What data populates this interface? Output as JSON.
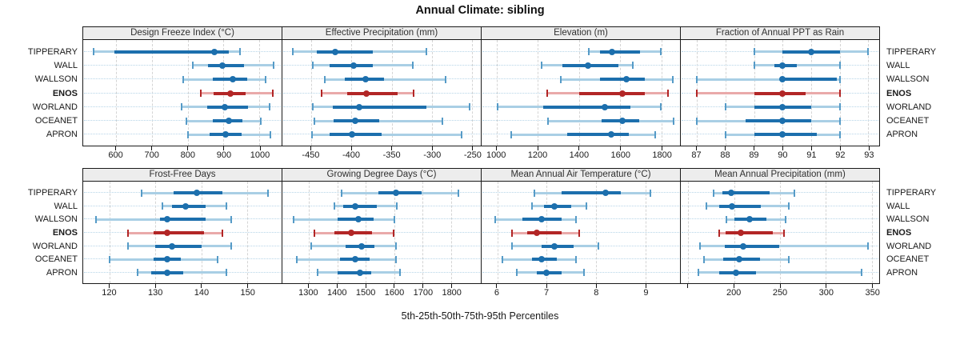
{
  "title": "Annual Climate: sibling",
  "footer": "5th-25th-50th-75th-95th Percentiles",
  "sites": [
    "TIPPERARY",
    "WALL",
    "WALLSON",
    "ENOS",
    "WORLAND",
    "OCEANET",
    "APRON"
  ],
  "highlighted_site": "ENOS",
  "percentile_labels": [
    "5th",
    "25th",
    "50th",
    "75th",
    "95th"
  ],
  "colors": {
    "blue_dark": "#1c6fad",
    "blue_light": "#a9cfe5",
    "blue_cap": "#569bc7",
    "red_dark": "#b22626",
    "red_light": "#e9a9a9",
    "grid_dash": "#d4d4d4",
    "row_dotted": "#b7d5e8",
    "header_bg": "#ededed",
    "border": "#1a1a1a"
  },
  "chart_data": [
    {
      "type": "percentile-range",
      "title": "Design Freeze Index (°C)",
      "grid_row": "top",
      "axis": {
        "domain": [
          508,
          1062
        ],
        "ticks": [
          600,
          700,
          800,
          900,
          1000
        ],
        "tick_labels": [
          "600",
          "700",
          "800",
          "900",
          "1000"
        ]
      },
      "series": [
        {
          "site": "TIPPERARY",
          "percentiles": [
            537,
            595,
            875,
            915,
            945
          ]
        },
        {
          "site": "WALL",
          "percentiles": [
            815,
            856,
            897,
            958,
            1040
          ]
        },
        {
          "site": "WALLSON",
          "percentiles": [
            787,
            871,
            926,
            967,
            1017
          ]
        },
        {
          "site": "ENOS",
          "percentiles": [
            837,
            872,
            920,
            962,
            1038
          ]
        },
        {
          "site": "WORLAND",
          "percentiles": [
            782,
            855,
            903,
            969,
            1029
          ]
        },
        {
          "site": "OCEANET",
          "percentiles": [
            796,
            871,
            914,
            953,
            1004
          ]
        },
        {
          "site": "APRON",
          "percentiles": [
            801,
            862,
            905,
            951,
            1031
          ]
        }
      ]
    },
    {
      "type": "percentile-range",
      "title": "Effective Precipitation (mm)",
      "grid_row": "top",
      "axis": {
        "domain": [
          -486,
          -239
        ],
        "ticks": [
          -450,
          -400,
          -350,
          -300,
          -250
        ],
        "tick_labels": [
          "-450",
          "-400",
          "-350",
          "-300",
          "-250"
        ]
      },
      "series": [
        {
          "site": "TIPPERARY",
          "percentiles": [
            -473,
            -443,
            -420,
            -373,
            -307
          ]
        },
        {
          "site": "WALL",
          "percentiles": [
            -448,
            -427,
            -397,
            -373,
            -324
          ]
        },
        {
          "site": "WALLSON",
          "percentiles": [
            -433,
            -408,
            -382,
            -360,
            -283
          ]
        },
        {
          "site": "ENOS",
          "percentiles": [
            -437,
            -405,
            -381,
            -343,
            -323
          ]
        },
        {
          "site": "WORLAND",
          "percentiles": [
            -448,
            -423,
            -390,
            -307,
            -253
          ]
        },
        {
          "site": "OCEANET",
          "percentiles": [
            -446,
            -422,
            -395,
            -365,
            -287
          ]
        },
        {
          "site": "APRON",
          "percentiles": [
            -449,
            -427,
            -399,
            -362,
            -263
          ]
        }
      ]
    },
    {
      "type": "percentile-range",
      "title": "Elevation (m)",
      "grid_row": "top",
      "axis": {
        "domain": [
          926,
          1890
        ],
        "ticks": [
          1000,
          1200,
          1400,
          1600,
          1800
        ],
        "tick_labels": [
          "1000",
          "1200",
          "1400",
          "1600",
          "1800"
        ]
      },
      "series": [
        {
          "site": "TIPPERARY",
          "percentiles": [
            1445,
            1500,
            1560,
            1695,
            1795
          ]
        },
        {
          "site": "WALL",
          "percentiles": [
            1216,
            1320,
            1444,
            1590,
            1660
          ]
        },
        {
          "site": "WALLSON",
          "percentiles": [
            1310,
            1500,
            1630,
            1720,
            1855
          ]
        },
        {
          "site": "ENOS",
          "percentiles": [
            1245,
            1400,
            1610,
            1720,
            1830
          ]
        },
        {
          "site": "WORLAND",
          "percentiles": [
            1005,
            1225,
            1525,
            1650,
            1795
          ]
        },
        {
          "site": "OCEANET",
          "percentiles": [
            1250,
            1510,
            1610,
            1690,
            1860
          ]
        },
        {
          "site": "APRON",
          "percentiles": [
            1070,
            1340,
            1555,
            1640,
            1770
          ]
        }
      ]
    },
    {
      "type": "percentile-range",
      "title": "Fraction of Annual PPT as Rain",
      "grid_row": "top",
      "axis": {
        "domain": [
          86.43,
          93.38
        ],
        "ticks": [
          87,
          88,
          89,
          90,
          91,
          92,
          93
        ],
        "tick_labels": [
          "87",
          "88",
          "89",
          "90",
          "91",
          "92",
          "93"
        ]
      },
      "series": [
        {
          "site": "TIPPERARY",
          "percentiles": [
            89,
            90,
            91,
            92,
            93
          ]
        },
        {
          "site": "WALL",
          "percentiles": [
            89,
            89.7,
            90,
            90.5,
            92
          ]
        },
        {
          "site": "WALLSON",
          "percentiles": [
            87,
            89.9,
            90,
            91.9,
            92
          ]
        },
        {
          "site": "ENOS",
          "percentiles": [
            87,
            89,
            90,
            90.8,
            92
          ]
        },
        {
          "site": "WORLAND",
          "percentiles": [
            88,
            89,
            90,
            91,
            92
          ]
        },
        {
          "site": "OCEANET",
          "percentiles": [
            87,
            88.7,
            90,
            91,
            92
          ]
        },
        {
          "site": "APRON",
          "percentiles": [
            88,
            89,
            90,
            91.2,
            92
          ]
        }
      ]
    },
    {
      "type": "percentile-range",
      "title": "Frost-Free Days",
      "grid_row": "bottom",
      "axis": {
        "domain": [
          114.2,
          157.5
        ],
        "ticks": [
          120,
          130,
          140,
          150
        ],
        "tick_labels": [
          "120",
          "130",
          "140",
          "150"
        ]
      },
      "series": [
        {
          "site": "TIPPERARY",
          "percentiles": [
            127,
            134,
            139,
            144.5,
            154.5
          ]
        },
        {
          "site": "WALL",
          "percentiles": [
            131.5,
            133.5,
            136.5,
            141,
            145.5
          ]
        },
        {
          "site": "WALLSON",
          "percentiles": [
            117,
            131,
            132.5,
            141,
            146.5
          ]
        },
        {
          "site": "ENOS",
          "percentiles": [
            124,
            129.5,
            132.5,
            140.5,
            144.5
          ]
        },
        {
          "site": "WORLAND",
          "percentiles": [
            124,
            130,
            133.5,
            140,
            146.5
          ]
        },
        {
          "site": "OCEANET",
          "percentiles": [
            120,
            129.5,
            132.5,
            135.5,
            143.5
          ]
        },
        {
          "site": "APRON",
          "percentiles": [
            126,
            129,
            132.5,
            136,
            145.5
          ]
        }
      ]
    },
    {
      "type": "percentile-range",
      "title": "Growing Degree Days (°C)",
      "grid_row": "bottom",
      "axis": {
        "domain": [
          1207,
          1904
        ],
        "ticks": [
          1300,
          1400,
          1500,
          1600,
          1700,
          1800
        ],
        "tick_labels": [
          "1300",
          "1400",
          "1500",
          "1600",
          "1700",
          "1800"
        ]
      },
      "series": [
        {
          "site": "TIPPERARY",
          "percentiles": [
            1415,
            1545,
            1605,
            1695,
            1825
          ]
        },
        {
          "site": "WALL",
          "percentiles": [
            1390,
            1420,
            1462,
            1540,
            1610
          ]
        },
        {
          "site": "WALLSON",
          "percentiles": [
            1245,
            1400,
            1475,
            1527,
            1600
          ]
        },
        {
          "site": "ENOS",
          "percentiles": [
            1320,
            1390,
            1450,
            1522,
            1598
          ]
        },
        {
          "site": "WORLAND",
          "percentiles": [
            1307,
            1430,
            1485,
            1530,
            1605
          ]
        },
        {
          "site": "OCEANET",
          "percentiles": [
            1258,
            1410,
            1462,
            1512,
            1607
          ]
        },
        {
          "site": "APRON",
          "percentiles": [
            1332,
            1400,
            1480,
            1520,
            1620
          ]
        }
      ]
    },
    {
      "type": "percentile-range",
      "title": "Mean Annual Air Temperature (°C)",
      "grid_row": "bottom",
      "axis": {
        "domain": [
          5.68,
          9.7
        ],
        "ticks": [
          6,
          7,
          8,
          9
        ],
        "tick_labels": [
          "6",
          "7",
          "8",
          "9"
        ]
      },
      "series": [
        {
          "site": "TIPPERARY",
          "percentiles": [
            6.75,
            7.3,
            8.2,
            8.5,
            9.1
          ]
        },
        {
          "site": "WALL",
          "percentiles": [
            6.7,
            6.95,
            7.15,
            7.5,
            7.8
          ]
        },
        {
          "site": "WALLSON",
          "percentiles": [
            5.95,
            6.5,
            6.9,
            7.3,
            7.6
          ]
        },
        {
          "site": "ENOS",
          "percentiles": [
            6.3,
            6.6,
            6.8,
            7.3,
            7.65
          ]
        },
        {
          "site": "WORLAND",
          "percentiles": [
            6.3,
            6.9,
            7.15,
            7.55,
            8.05
          ]
        },
        {
          "site": "OCEANET",
          "percentiles": [
            6.1,
            6.7,
            6.9,
            7.2,
            7.6
          ]
        },
        {
          "site": "APRON",
          "percentiles": [
            6.4,
            6.8,
            7.0,
            7.3,
            7.75
          ]
        }
      ]
    },
    {
      "type": "percentile-range",
      "title": "Mean Annual Precipitation (mm)",
      "grid_row": "bottom",
      "axis": {
        "domain": [
          142,
          358
        ],
        "ticks": [
          150,
          200,
          250,
          300,
          350
        ],
        "tick_labels": [
          "",
          "200",
          "250",
          "300",
          "350"
        ]
      },
      "series": [
        {
          "site": "TIPPERARY",
          "percentiles": [
            178,
            187,
            197,
            239,
            266
          ]
        },
        {
          "site": "WALL",
          "percentiles": [
            170,
            184,
            198,
            229,
            260
          ]
        },
        {
          "site": "WALLSON",
          "percentiles": [
            192,
            200,
            217,
            235,
            256
          ]
        },
        {
          "site": "ENOS",
          "percentiles": [
            184,
            191,
            207,
            242,
            254
          ]
        },
        {
          "site": "WORLAND",
          "percentiles": [
            163,
            190,
            210,
            249,
            346
          ]
        },
        {
          "site": "OCEANET",
          "percentiles": [
            167,
            188,
            206,
            228,
            260
          ]
        },
        {
          "site": "APRON",
          "percentiles": [
            161,
            184,
            202,
            224,
            339
          ]
        }
      ]
    }
  ]
}
